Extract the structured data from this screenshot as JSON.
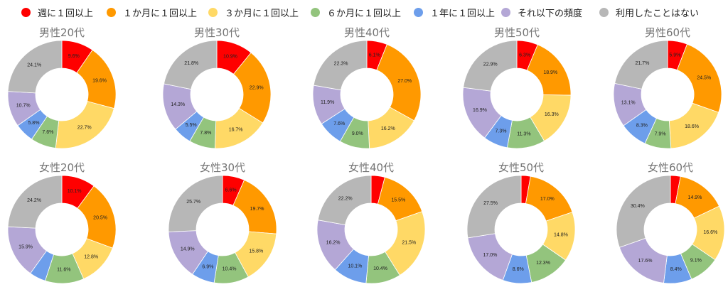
{
  "chart_data": {
    "type": "pie",
    "variant": "donut",
    "legend_position": "top",
    "legend": [
      "週に１回以上",
      "１か月に１回以上",
      "３か月に１回以上",
      "６か月に１回以上",
      "１年に１回以上",
      "それ以下の頻度",
      "利用したことはない"
    ],
    "colors": [
      "#ff0000",
      "#ff9900",
      "#ffd966",
      "#93c47d",
      "#6d9eeb",
      "#b4a7d6",
      "#b7b7b7"
    ],
    "charts": [
      {
        "title": "男性20代",
        "values": [
          9.6,
          19.6,
          22.7,
          7.6,
          5.8,
          10.7,
          24.1
        ]
      },
      {
        "title": "男性30代",
        "values": [
          10.9,
          22.9,
          16.7,
          7.8,
          5.5,
          14.3,
          21.8
        ]
      },
      {
        "title": "男性40代",
        "values": [
          6.1,
          27.0,
          16.2,
          9.0,
          7.6,
          11.9,
          22.3
        ]
      },
      {
        "title": "男性50代",
        "values": [
          6.3,
          18.9,
          16.3,
          11.3,
          7.3,
          16.9,
          22.9
        ]
      },
      {
        "title": "男性60代",
        "values": [
          5.9,
          24.5,
          18.6,
          7.9,
          8.3,
          13.1,
          21.7
        ]
      },
      {
        "title": "女性20代",
        "values": [
          10.1,
          20.5,
          12.8,
          11.6,
          4.9,
          15.9,
          24.2
        ]
      },
      {
        "title": "女性30代",
        "values": [
          6.6,
          19.7,
          15.8,
          10.4,
          6.9,
          14.9,
          25.7
        ]
      },
      {
        "title": "女性40代",
        "values": [
          4.1,
          15.5,
          21.5,
          10.4,
          10.1,
          16.2,
          22.2
        ]
      },
      {
        "title": "女性50代",
        "values": [
          2.8,
          17.0,
          14.8,
          12.3,
          8.6,
          17.0,
          27.5
        ]
      },
      {
        "title": "女性60代",
        "values": [
          3.0,
          14.9,
          16.6,
          9.1,
          8.4,
          17.6,
          30.4
        ]
      }
    ]
  }
}
